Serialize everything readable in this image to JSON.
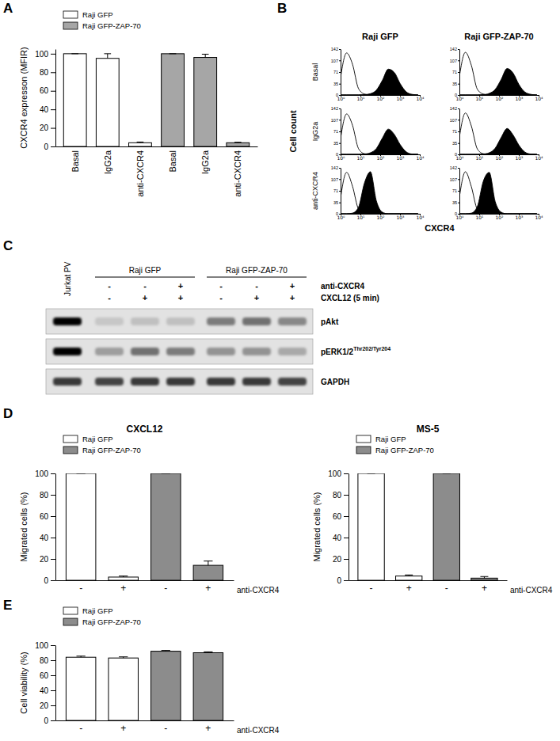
{
  "panel_labels": [
    "A",
    "B",
    "C",
    "D",
    "E"
  ],
  "chart_data": [
    {
      "type": "bar",
      "y_label": "CXCR4 expresson (MFIR)",
      "categories": [
        "Basal",
        "IgG2a",
        "anti-CXCR4",
        "Basal",
        "IgG2a",
        "anti-CXCR4"
      ],
      "ylim": [
        0,
        105
      ],
      "yticks": [
        0,
        20,
        40,
        60,
        80,
        100
      ],
      "legend": "top-left",
      "series": [
        {
          "name": "Raji GFP",
          "color": "#ffffff",
          "values": [
            100,
            95,
            4,
            null,
            null,
            null
          ],
          "errors": [
            0,
            5,
            0.8,
            null,
            null,
            null
          ]
        },
        {
          "name": "Raji GFP-ZAP-70",
          "color": "#a6a6a6",
          "values": [
            null,
            null,
            null,
            100,
            96,
            4
          ],
          "errors": [
            null,
            null,
            null,
            0,
            3.5,
            0.6
          ]
        }
      ]
    },
    {
      "type": "area",
      "log": "x",
      "column_labels": [
        "Raji GFP",
        "Raji GFP-ZAP-70"
      ],
      "row_labels": [
        "Basal",
        "IgG2a",
        "anti-CXCR4"
      ],
      "x_label": "CXCR4",
      "y_label": "Cell count",
      "x": [
        1,
        2,
        4,
        8,
        16,
        32,
        64,
        128,
        256,
        512,
        1024,
        2048,
        4096,
        8192
      ],
      "xlim": [
        1,
        10000
      ],
      "xticks": [
        {
          "value": 1,
          "label": "10⁰"
        },
        {
          "value": 10,
          "label": "10¹"
        },
        {
          "value": 100,
          "label": "10²"
        },
        {
          "value": 1000,
          "label": "10³"
        },
        {
          "value": 10000,
          "label": "10⁴"
        }
      ],
      "ylim": [
        0,
        142
      ],
      "yticks": [
        0,
        35,
        71,
        107,
        142
      ],
      "cells": [
        [
          {
            "series": [
              {
                "color": "#ffffff",
                "values": [
                  55,
                  130,
                  95,
                  20,
                  3,
                  0,
                  0,
                  0,
                  0,
                  0,
                  0,
                  0,
                  0,
                  0
                ]
              },
              {
                "color": "#000000",
                "values": [
                  0,
                  0,
                  0,
                  0,
                  1,
                  4,
                  15,
                  45,
                  80,
                  70,
                  35,
                  10,
                  2,
                  0
                ]
              }
            ]
          },
          {
            "series": [
              {
                "color": "#ffffff",
                "values": [
                  58,
                  132,
                  92,
                  18,
                  3,
                  0,
                  0,
                  0,
                  0,
                  0,
                  0,
                  0,
                  0,
                  0
                ]
              },
              {
                "color": "#000000",
                "values": [
                  0,
                  0,
                  0,
                  0,
                  1,
                  5,
                  17,
                  48,
                  82,
                  68,
                  32,
                  9,
                  2,
                  0
                ]
              }
            ]
          }
        ],
        [
          {
            "series": [
              {
                "color": "#ffffff",
                "values": [
                  50,
                  125,
                  90,
                  18,
                  2,
                  0,
                  0,
                  0,
                  0,
                  0,
                  0,
                  0,
                  0,
                  0
                ]
              },
              {
                "color": "#000000",
                "values": [
                  0,
                  0,
                  0,
                  0,
                  1,
                  5,
                  18,
                  50,
                  78,
                  62,
                  30,
                  8,
                  1,
                  0
                ]
              }
            ]
          },
          {
            "series": [
              {
                "color": "#ffffff",
                "values": [
                  54,
                  128,
                  88,
                  17,
                  2,
                  0,
                  0,
                  0,
                  0,
                  0,
                  0,
                  0,
                  0,
                  0
                ]
              },
              {
                "color": "#000000",
                "values": [
                  0,
                  0,
                  0,
                  0,
                  1,
                  5,
                  19,
                  52,
                  80,
                  60,
                  28,
                  7,
                  1,
                  0
                ]
              }
            ]
          }
        ],
        [
          {
            "series": [
              {
                "color": "#ffffff",
                "values": [
                  50,
                  128,
                  85,
                  15,
                  2,
                  0,
                  0,
                  0,
                  0,
                  0,
                  0,
                  0,
                  0,
                  0
                ]
              },
              {
                "color": "#000000",
                "values": [
                  0,
                  0,
                  2,
                  20,
                  95,
                  130,
                  40,
                  5,
                  0,
                  0,
                  0,
                  0,
                  0,
                  0
                ]
              }
            ]
          },
          {
            "series": [
              {
                "color": "#ffffff",
                "values": [
                  52,
                  130,
                  84,
                  14,
                  2,
                  0,
                  0,
                  0,
                  0,
                  0,
                  0,
                  0,
                  0,
                  0
                ]
              },
              {
                "color": "#000000",
                "values": [
                  0,
                  0,
                  2,
                  22,
                  100,
                  128,
                  38,
                  5,
                  0,
                  0,
                  0,
                  0,
                  0,
                  0
                ]
              }
            ]
          }
        ]
      ]
    },
    {
      "type": "bar",
      "title": "CXCL12",
      "y_label": "Migrated cells (%)",
      "x_label": "anti-CXCR4",
      "categories": [
        "-",
        "+",
        "-",
        "+"
      ],
      "ylim": [
        0,
        100
      ],
      "yticks": [
        0,
        20,
        40,
        60,
        80,
        100
      ],
      "legend": "top-left",
      "series": [
        {
          "name": "Raji GFP",
          "color": "#ffffff",
          "values": [
            100,
            3,
            null,
            null
          ],
          "errors": [
            0,
            1,
            null,
            null
          ]
        },
        {
          "name": "Raji GFP-ZAP-70",
          "color": "#8c8c8c",
          "values": [
            null,
            null,
            100,
            14
          ],
          "errors": [
            null,
            null,
            0,
            4
          ]
        }
      ]
    },
    {
      "type": "bar",
      "title": "MS-5",
      "y_label": "Migrated cells (%)",
      "x_label": "anti-CXCR4",
      "categories": [
        "-",
        "+",
        "-",
        "+"
      ],
      "ylim": [
        0,
        100
      ],
      "yticks": [
        0,
        20,
        40,
        60,
        80,
        100
      ],
      "legend": "top-left",
      "series": [
        {
          "name": "Raji GFP",
          "color": "#ffffff",
          "values": [
            100,
            4,
            null,
            null
          ],
          "errors": [
            0,
            1,
            null,
            null
          ]
        },
        {
          "name": "Raji GFP-ZAP-70",
          "color": "#8c8c8c",
          "values": [
            null,
            null,
            100,
            2
          ],
          "errors": [
            null,
            null,
            0,
            1.5
          ]
        }
      ]
    },
    {
      "type": "bar",
      "y_label": "Cell viability (%)",
      "x_label": "anti-CXCR4",
      "categories": [
        "-",
        "+",
        "-",
        "+"
      ],
      "ylim": [
        0,
        100
      ],
      "yticks": [
        0,
        20,
        40,
        60,
        80,
        100
      ],
      "legend": "top-left",
      "series": [
        {
          "name": "Raji GFP",
          "color": "#ffffff",
          "values": [
            84,
            83,
            null,
            null
          ],
          "errors": [
            1.5,
            1.5,
            null,
            null
          ]
        },
        {
          "name": "Raji GFP-ZAP-70",
          "color": "#8c8c8c",
          "values": [
            null,
            null,
            92,
            90
          ],
          "errors": [
            null,
            null,
            1,
            1.2
          ]
        }
      ]
    }
  ],
  "blot": {
    "reference_lane": "Jurkat PV",
    "condition_labels": [
      "anti-CXCR4",
      "CXCL12 (5 min)"
    ],
    "groups": [
      {
        "label": "Raji GFP",
        "conditions": [
          [
            "-",
            "-"
          ],
          [
            "-",
            "+"
          ],
          [
            "+",
            "+"
          ]
        ]
      },
      {
        "label": "Raji GFP-ZAP-70",
        "conditions": [
          [
            "-",
            "-"
          ],
          [
            "-",
            "+"
          ],
          [
            "+",
            "+"
          ]
        ]
      }
    ],
    "bands": [
      {
        "label": "pAkt",
        "intensity": [
          1.0,
          0.12,
          0.15,
          0.15,
          0.45,
          0.5,
          0.4
        ]
      },
      {
        "label": "pERK1/2",
        "superscript": "Thr202/Tyr204",
        "intensity": [
          1.0,
          0.3,
          0.5,
          0.45,
          0.35,
          0.35,
          0.25
        ]
      },
      {
        "label": "GAPDH",
        "intensity": [
          0.75,
          0.7,
          0.75,
          0.75,
          0.75,
          0.75,
          0.7
        ]
      }
    ]
  }
}
